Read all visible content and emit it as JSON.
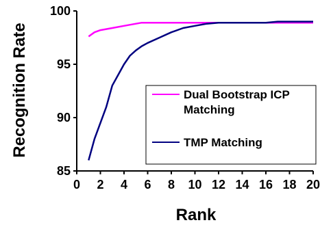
{
  "chart_data": {
    "type": "line",
    "title": "",
    "xlabel": "Rank",
    "ylabel": "Recognition Rate",
    "xlim": [
      0,
      20
    ],
    "ylim": [
      85,
      100
    ],
    "xticks": [
      0,
      2,
      4,
      6,
      8,
      10,
      12,
      14,
      16,
      18,
      20
    ],
    "yticks": [
      85,
      90,
      95,
      100
    ],
    "grid": false,
    "legend_placement": "center-right",
    "series": [
      {
        "name": "Dual Bootstrap ICP Matching",
        "color": "#ff00ff",
        "x": [
          1,
          1.5,
          2,
          3,
          4,
          5,
          5.5,
          6,
          8,
          10,
          12,
          14,
          16,
          18,
          20
        ],
        "y": [
          97.6,
          98.0,
          98.2,
          98.4,
          98.6,
          98.8,
          98.9,
          98.9,
          98.9,
          98.9,
          98.9,
          98.9,
          98.9,
          98.9,
          98.9
        ]
      },
      {
        "name": "TMP Matching",
        "color": "#000080",
        "x": [
          1,
          1.5,
          2,
          2.5,
          3,
          3.5,
          4,
          4.5,
          5,
          5.5,
          6,
          7,
          8,
          9,
          10,
          11,
          12,
          14,
          16,
          17,
          18,
          20
        ],
        "y": [
          86.0,
          88.0,
          89.5,
          91.0,
          93.0,
          94.0,
          95.0,
          95.8,
          96.3,
          96.7,
          97.0,
          97.5,
          98.0,
          98.4,
          98.6,
          98.8,
          98.9,
          98.9,
          98.9,
          99.0,
          99.0,
          99.0
        ]
      }
    ]
  }
}
